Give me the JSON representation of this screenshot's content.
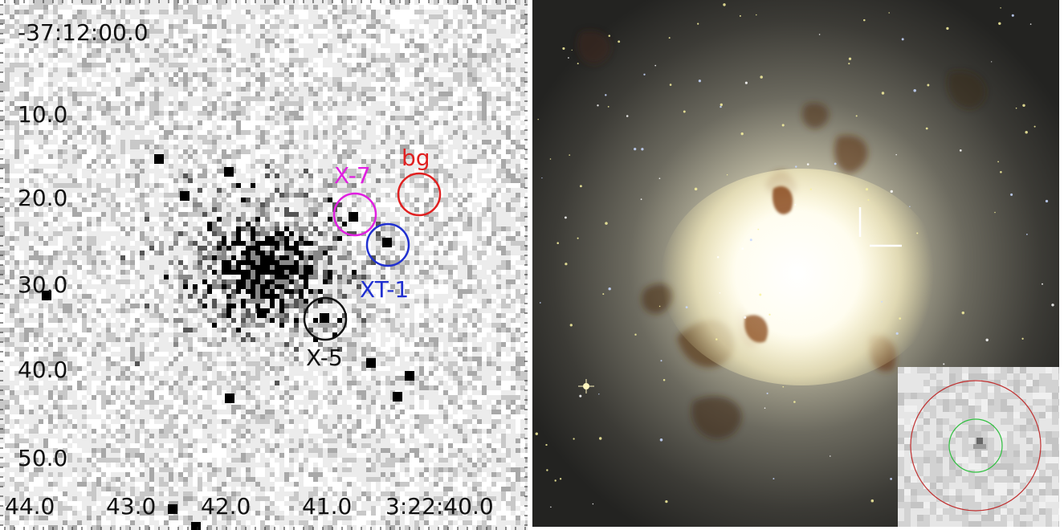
{
  "left_panel": {
    "y_axis_labels": [
      "-37:12:00.0",
      "10.0",
      "20.0",
      "30.0",
      "40.0",
      "50.0"
    ],
    "x_axis_labels": [
      "44.0",
      "43.0",
      "42.0",
      "41.0",
      "3:22:40.0"
    ],
    "regions": [
      {
        "label": "bg",
        "color": "#e02020"
      },
      {
        "label": "X-7",
        "color": "#e020e0"
      },
      {
        "label": "XT-1",
        "color": "#2030d0"
      },
      {
        "label": "X-5",
        "color": "#111111"
      }
    ]
  },
  "right_panel": {
    "inset_circle_colors": {
      "outer": "#c03030",
      "inner": "#30c040"
    },
    "marker_color": "#ffffff"
  }
}
